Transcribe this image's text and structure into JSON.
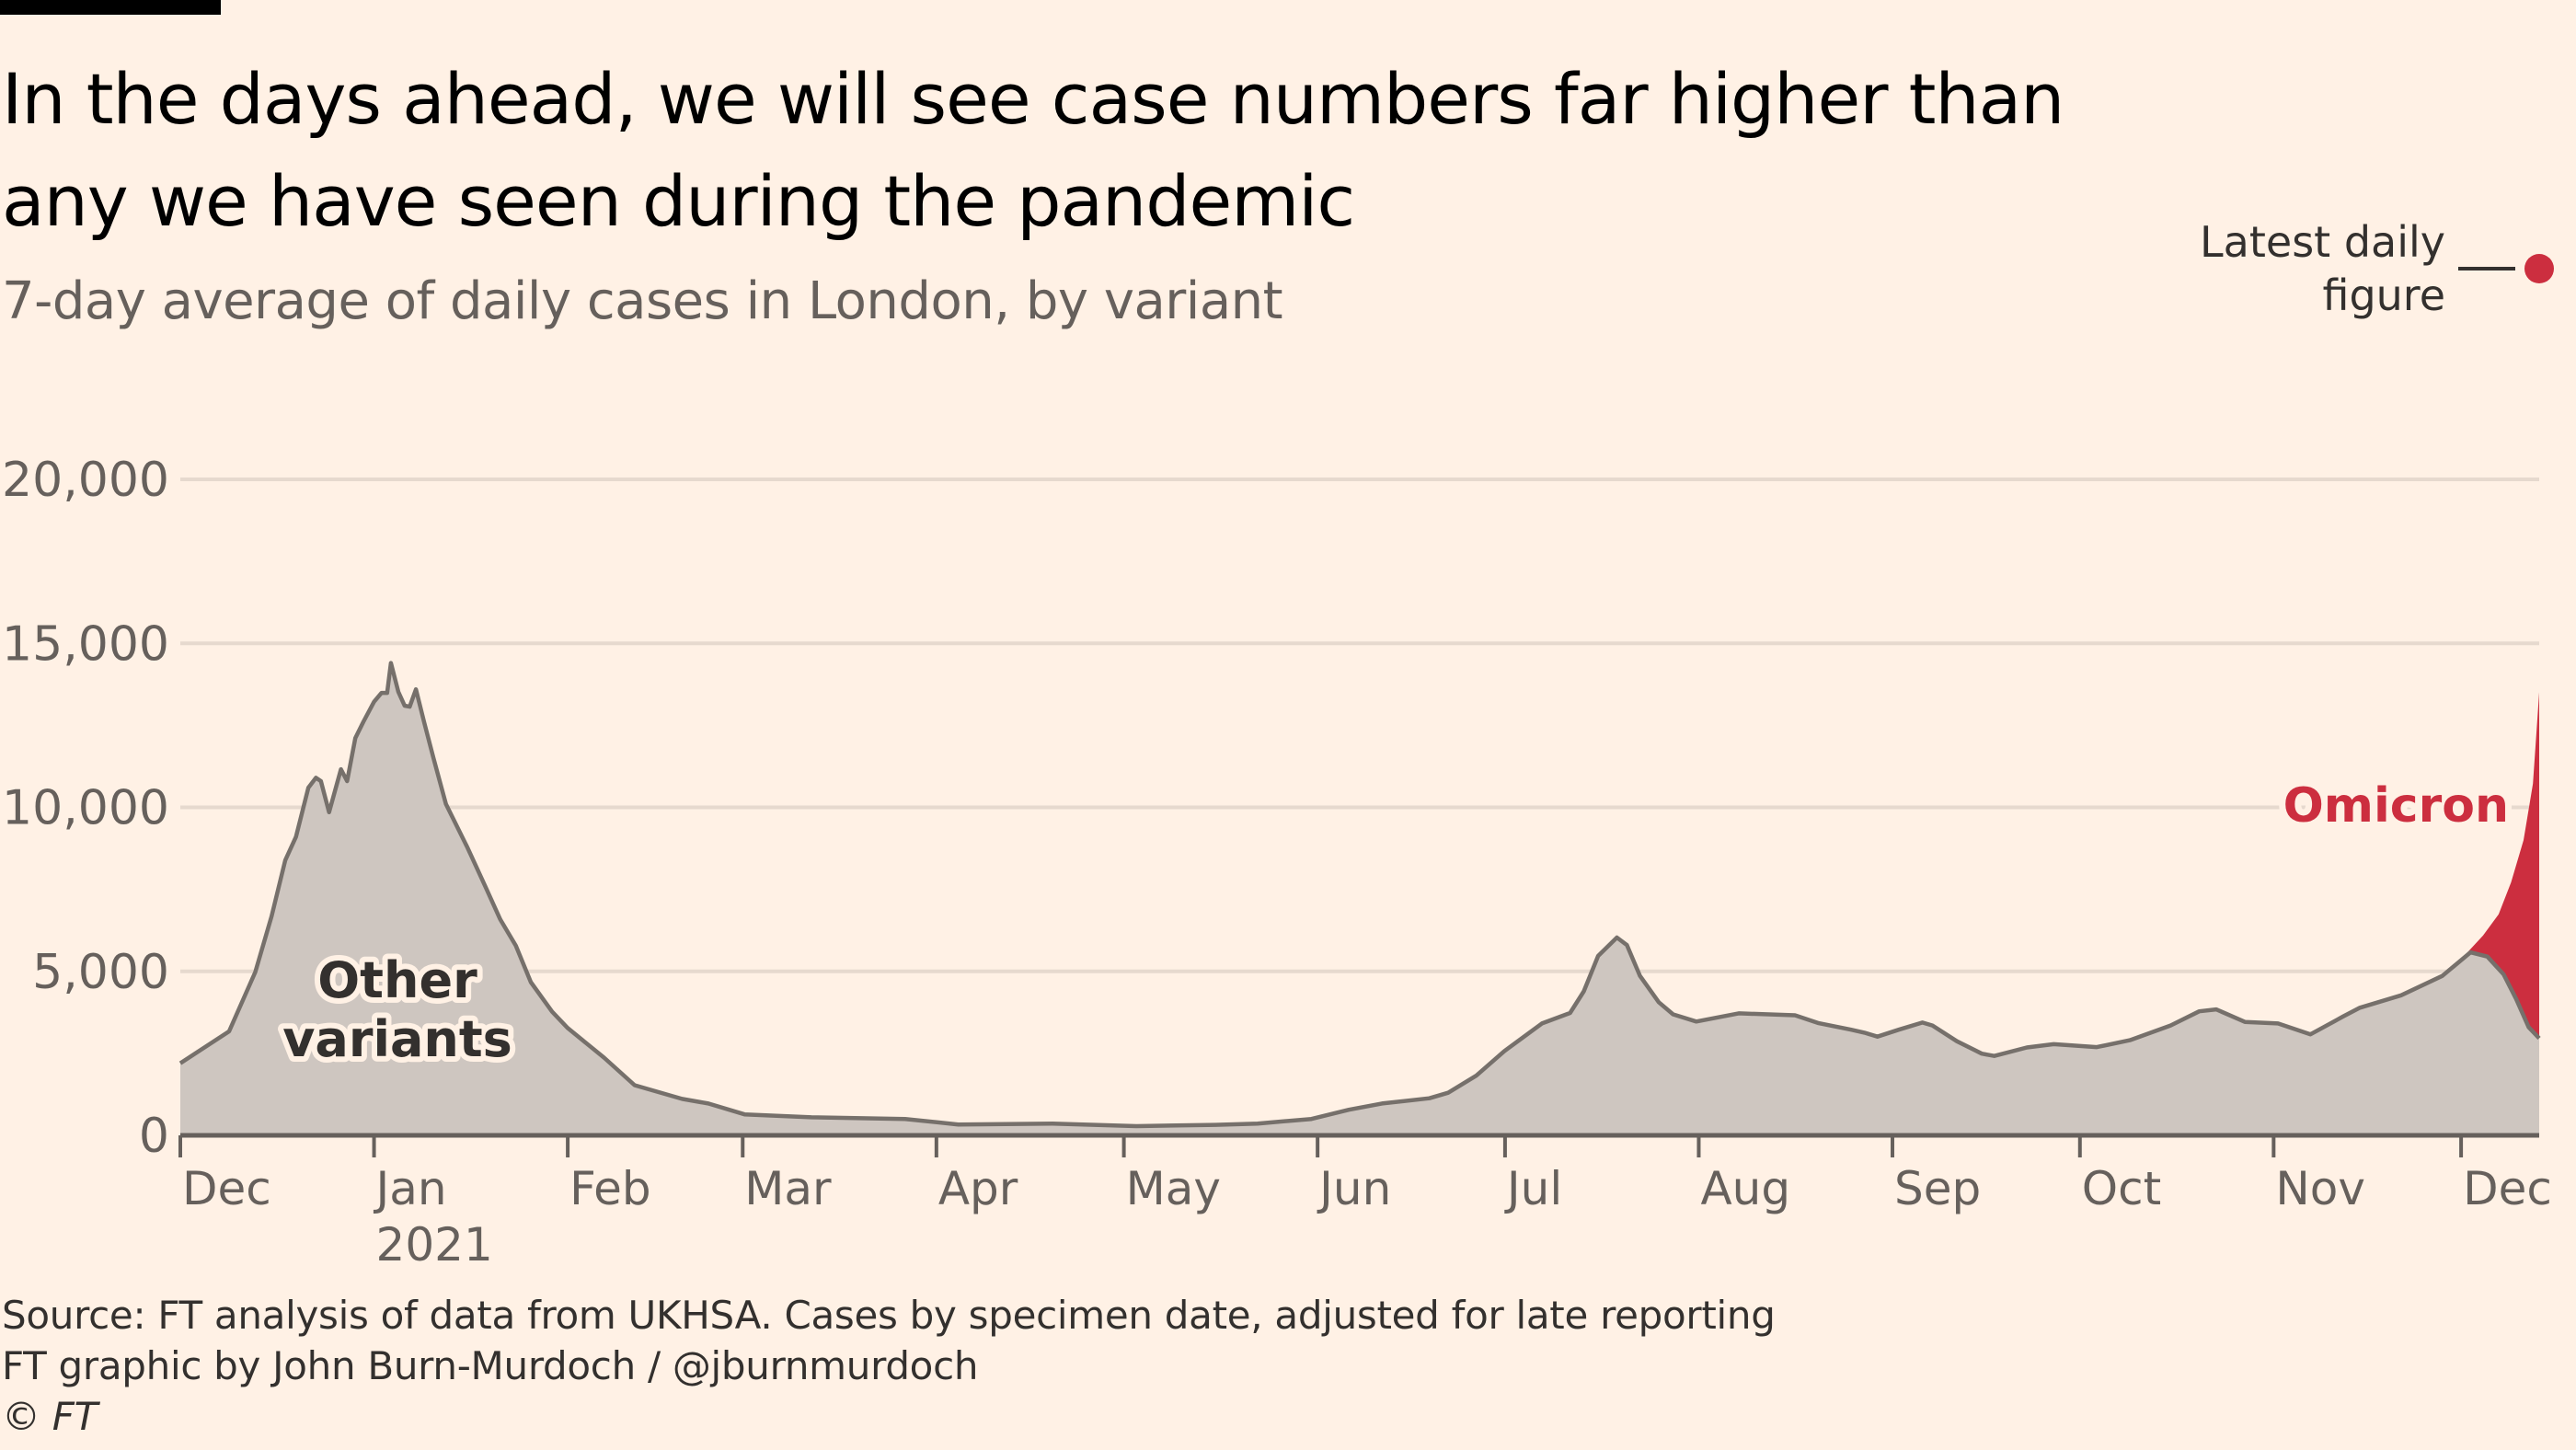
{
  "header": {
    "title_line1": "In the days ahead, we will see case numbers far higher than",
    "title_line2": "any we have seen during the pandemic",
    "subtitle": "7-day average of daily cases in London, by variant"
  },
  "legend": {
    "line1": "Latest daily",
    "line2": "figure",
    "marker_color": "#CC2E3F"
  },
  "footer": {
    "source": "Source: FT analysis of data from UKHSA. Cases by specimen date, adjusted for late reporting",
    "credit": "FT graphic by John Burn-Murdoch / @jburnmurdoch",
    "copyright": "© FT"
  },
  "chart_data": {
    "type": "area",
    "title": "In the days ahead, we will see case numbers far higher than any we have seen during the pandemic",
    "subtitle": "7-day average of daily cases in London, by variant",
    "xlabel": "",
    "ylabel": "",
    "x_unit": "days since 1 Dec 2020",
    "x_range": [
      0,
      377.5
    ],
    "ylim": [
      0,
      20000
    ],
    "grid": true,
    "y_ticks": [
      0,
      5000,
      10000,
      15000,
      20000
    ],
    "y_tick_labels": [
      "0",
      "5,000",
      "10,000",
      "15,000",
      "20,000"
    ],
    "x_ticks": [
      {
        "day": 0,
        "label": "Dec"
      },
      {
        "day": 31,
        "label": "Jan",
        "sublabel": "2021"
      },
      {
        "day": 62,
        "label": "Feb"
      },
      {
        "day": 90,
        "label": "Mar"
      },
      {
        "day": 121,
        "label": "Apr"
      },
      {
        "day": 151,
        "label": "May"
      },
      {
        "day": 182,
        "label": "Jun"
      },
      {
        "day": 212,
        "label": "Jul"
      },
      {
        "day": 243,
        "label": "Aug"
      },
      {
        "day": 274,
        "label": "Sep"
      },
      {
        "day": 304,
        "label": "Oct"
      },
      {
        "day": 335,
        "label": "Nov"
      },
      {
        "day": 365,
        "label": "Dec"
      }
    ],
    "series": [
      {
        "name": "Other variants",
        "color": "#CEC6C0",
        "line_color": "#76706B",
        "label": "Other variants",
        "label_line1": "Other",
        "label_line2": "variants",
        "x": [
          0,
          7.8,
          12,
          14.6,
          16.8,
          18.5,
          20.5,
          21.7,
          22.5,
          23.8,
          25.7,
          26.7,
          28,
          29.3,
          31,
          32.2,
          33.1,
          33.7,
          34.9,
          35.9,
          36.7,
          37.7,
          39,
          40.5,
          42.5,
          45.9,
          48.8,
          51.2,
          53.7,
          56.1,
          59.5,
          62,
          67.8,
          72.7,
          80.3,
          84.5,
          90.3,
          101,
          116,
          124.5,
          139.6,
          153,
          165.6,
          172.4,
          181,
          187,
          192.3,
          199.9,
          202.9,
          207.4,
          211.9,
          217.9,
          222.4,
          224.6,
          226.9,
          229.9,
          231.5,
          233.6,
          236.6,
          238.9,
          242.6,
          249.4,
          258.4,
          262.2,
          267.4,
          269.5,
          271.6,
          275,
          278.8,
          280.4,
          284.3,
          288.3,
          290.3,
          295.5,
          299.8,
          306.7,
          312,
          318.5,
          323.1,
          325.8,
          330.4,
          335.7,
          340.9,
          346.1,
          348.8,
          355.4,
          362,
          366.5,
          369.2,
          371.8,
          373.8,
          375.8,
          377.5
        ],
        "values": [
          2200,
          3170,
          4980,
          6680,
          8390,
          9100,
          10600,
          10900,
          10800,
          9850,
          11160,
          10800,
          12110,
          12610,
          13220,
          13490,
          13490,
          14400,
          13520,
          13100,
          13070,
          13600,
          12610,
          11510,
          10100,
          8790,
          7590,
          6580,
          5780,
          4670,
          3770,
          3270,
          2370,
          1530,
          1110,
          970,
          640,
          550,
          500,
          330,
          360,
          280,
          320,
          360,
          500,
          780,
          970,
          1130,
          1300,
          1820,
          2570,
          3410,
          3730,
          4390,
          5470,
          6030,
          5800,
          4860,
          4060,
          3690,
          3470,
          3720,
          3660,
          3420,
          3220,
          3130,
          3010,
          3220,
          3440,
          3350,
          2870,
          2490,
          2420,
          2680,
          2780,
          2690,
          2900,
          3350,
          3780,
          3840,
          3460,
          3410,
          3080,
          3620,
          3890,
          4270,
          4860,
          5580,
          5450,
          4910,
          4160,
          3300,
          2960
        ]
      },
      {
        "name": "Omicron",
        "color": "#CC2E3F",
        "label": "Omicron",
        "total_x": [
          365,
          368.5,
          371,
          373,
          375,
          376.5,
          377.5
        ],
        "total_values": [
          5370,
          6090,
          6740,
          7710,
          9000,
          10720,
          13510
        ]
      }
    ],
    "annotations": [
      {
        "text": "Other variants",
        "series": "Other variants"
      },
      {
        "text": "Omicron",
        "series": "Omicron"
      },
      {
        "text": "Latest daily figure",
        "marker": "red dot"
      }
    ]
  }
}
